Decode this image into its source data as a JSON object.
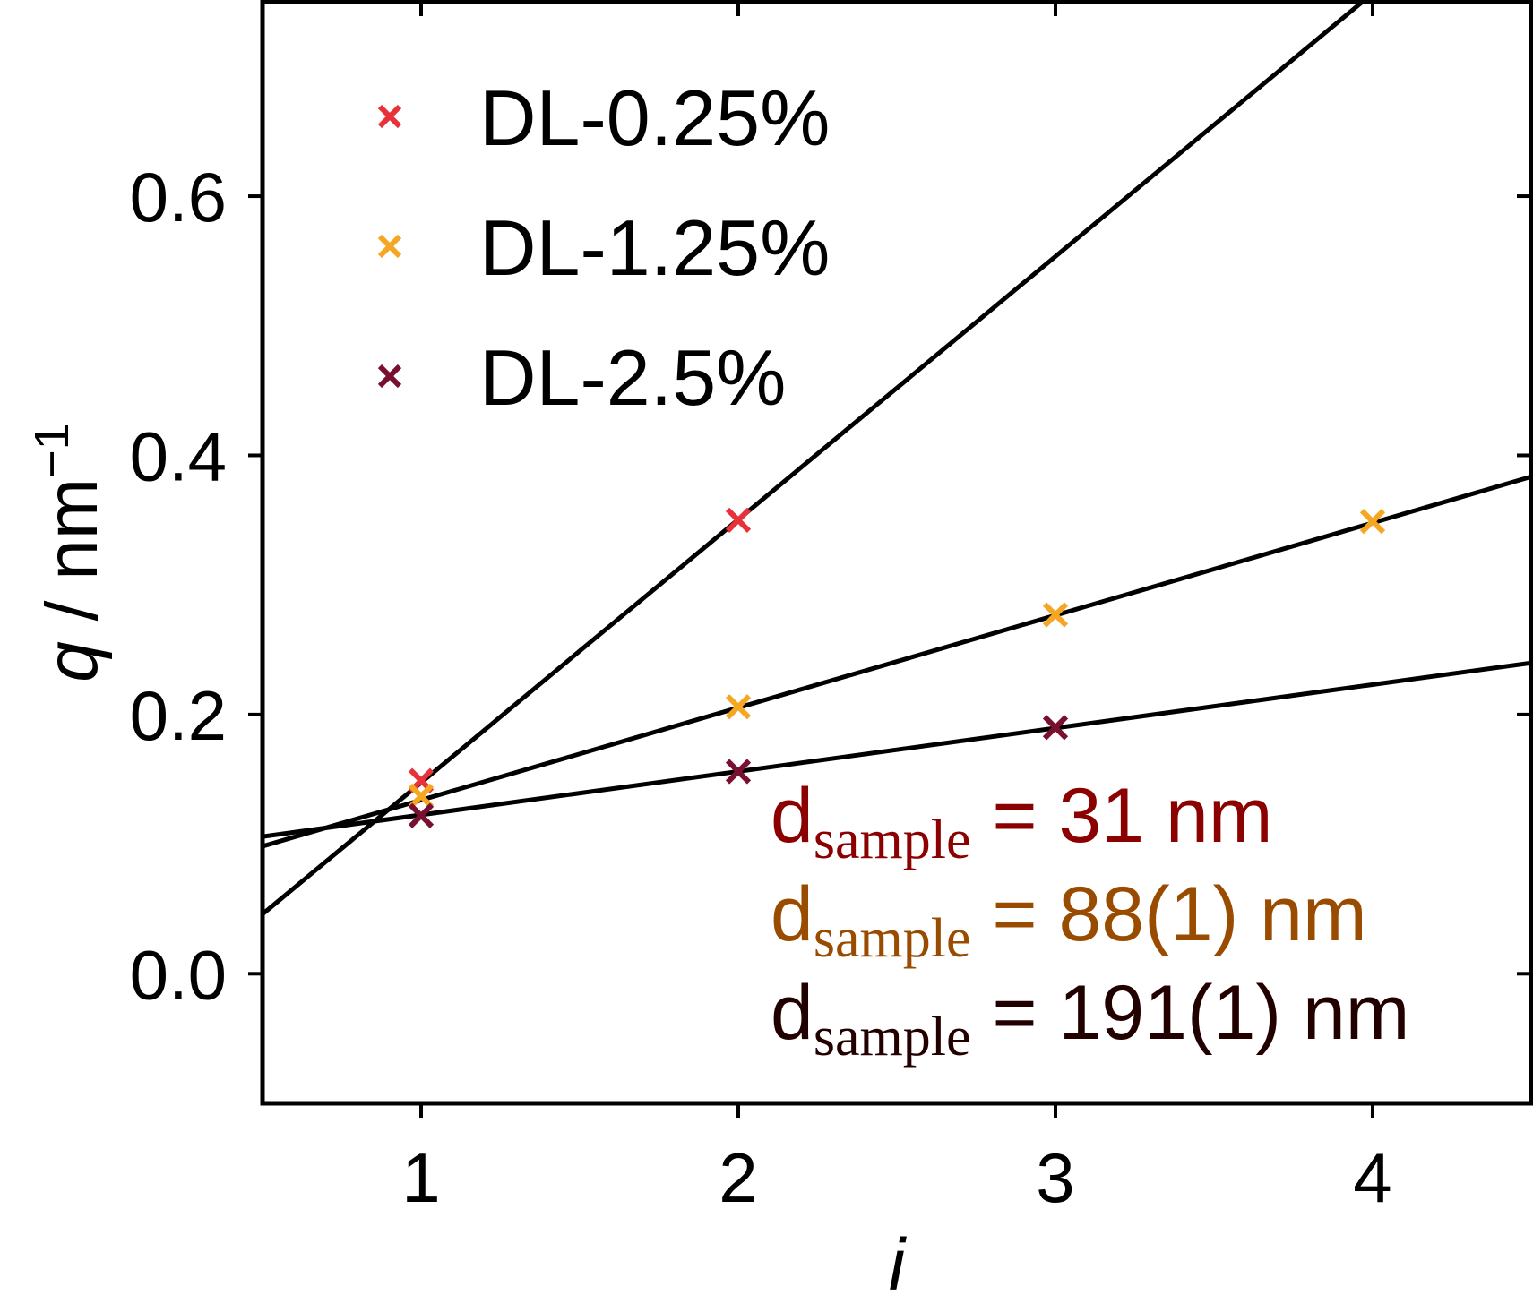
{
  "chart_data": {
    "type": "scatter",
    "xlabel": "i",
    "ylabel": {
      "italic": "q",
      "rest": " / nm",
      "sup": "−1"
    },
    "xlim": [
      0.5,
      4.5
    ],
    "ylim": [
      -0.1,
      0.75
    ],
    "xticks": [
      1,
      2,
      3,
      4
    ],
    "xtick_labels": [
      "1",
      "2",
      "3",
      "4"
    ],
    "yticks": [
      0.0,
      0.2,
      0.4,
      0.6
    ],
    "ytick_labels": [
      "0.0",
      "0.2",
      "0.4",
      "0.6"
    ],
    "grid": false,
    "legend_position": "top-left",
    "series": [
      {
        "name": "DL-0.25%",
        "color": "#e8323a",
        "x": [
          1,
          2
        ],
        "y": [
          0.149,
          0.35
        ],
        "fit": {
          "slope": 0.203,
          "intercept": -0.0555
        }
      },
      {
        "name": "DL-1.25%",
        "color": "#f5a623",
        "x": [
          1,
          2,
          3,
          4
        ],
        "y": [
          0.137,
          0.206,
          0.277,
          0.349
        ],
        "fit": {
          "slope": 0.0713,
          "intercept": 0.0627
        }
      },
      {
        "name": "DL-2.5%",
        "color": "#7a1030",
        "x": [
          1,
          2,
          3
        ],
        "y": [
          0.122,
          0.156,
          0.19
        ],
        "fit": {
          "slope": 0.0335,
          "intercept": 0.0891
        }
      }
    ],
    "annotations": [
      {
        "main": "d",
        "sub": "sample",
        "rest": " = 31 nm",
        "color": "#8b0000"
      },
      {
        "main": "d",
        "sub": "sample",
        "rest": " = 88(1) nm",
        "color": "#994c00"
      },
      {
        "main": "d",
        "sub": "sample",
        "rest": " = 191(1) nm",
        "color": "#220000"
      }
    ]
  }
}
